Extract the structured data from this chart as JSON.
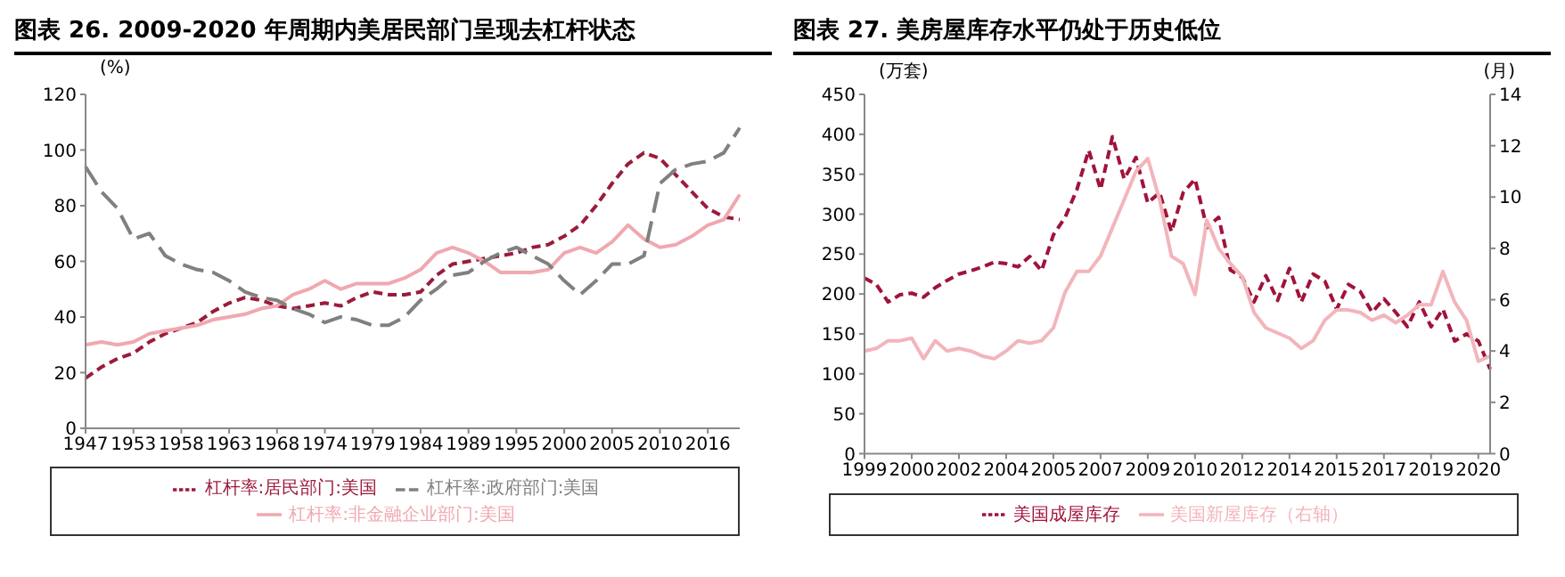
{
  "chart_data": [
    {
      "type": "line",
      "title": "图表 26. 2009-2020 年周期内美居民部门呈现去杠杆状态",
      "ylabel": "(%)",
      "categories": [
        "1947",
        null,
        null,
        "1953",
        null,
        null,
        "1958",
        null,
        null,
        "1963",
        null,
        null,
        "1968",
        null,
        null,
        "1974",
        null,
        null,
        "1979",
        null,
        null,
        "1984",
        null,
        null,
        "1989",
        null,
        null,
        "1995",
        null,
        null,
        "2000",
        null,
        null,
        "2005",
        null,
        null,
        "2010",
        null,
        null,
        "2016",
        null,
        null
      ],
      "ylim": [
        0,
        120
      ],
      "yticks": [
        0,
        20,
        40,
        60,
        80,
        100,
        120
      ],
      "legend": "bottom",
      "marker": "none",
      "series": [
        {
          "name": "杠杆率:居民部门:美国",
          "color": "#9b1b3b",
          "line_style": "dashed",
          "values": [
            18,
            22,
            25,
            27,
            31,
            34,
            36,
            38,
            42,
            45,
            47,
            46,
            44,
            43,
            44,
            45,
            44,
            47,
            49,
            48,
            48,
            49,
            55,
            59,
            60,
            61,
            62,
            63,
            65,
            66,
            69,
            73,
            80,
            88,
            95,
            99,
            97,
            91,
            85,
            79,
            76,
            75
          ]
        },
        {
          "name": "杠杆率:非金融企业部门:美国",
          "color": "#f0a8b0",
          "line_style": "solid",
          "values": [
            30,
            31,
            30,
            31,
            34,
            35,
            36,
            37,
            39,
            40,
            41,
            43,
            44,
            48,
            50,
            53,
            50,
            52,
            52,
            52,
            54,
            57,
            63,
            65,
            63,
            60,
            56,
            56,
            56,
            57,
            63,
            65,
            63,
            67,
            73,
            68,
            65,
            66,
            69,
            73,
            75,
            84
          ]
        },
        {
          "name": "杠杆率:政府部门:美国",
          "color": "#808080",
          "line_style": "longdash",
          "values": [
            94,
            85,
            79,
            68,
            70,
            62,
            59,
            57,
            56,
            53,
            49,
            47,
            46,
            43,
            41,
            38,
            40,
            39,
            37,
            37,
            40,
            46,
            50,
            55,
            56,
            60,
            63,
            65,
            62,
            59,
            53,
            48,
            53,
            59,
            59,
            62,
            88,
            93,
            95,
            96,
            99,
            108
          ]
        }
      ]
    },
    {
      "type": "line",
      "title": "图表 27. 美房屋库存水平仍处于历史低位",
      "ylabel": "(万套)",
      "y2label": "(月)",
      "categories": [
        "1999",
        null,
        null,
        null,
        "2000",
        null,
        null,
        null,
        "2002",
        null,
        null,
        null,
        "2004",
        null,
        null,
        null,
        "2005",
        null,
        null,
        null,
        "2007",
        null,
        null,
        null,
        "2009",
        null,
        null,
        null,
        "2010",
        null,
        null,
        null,
        "2012",
        null,
        null,
        null,
        "2014",
        null,
        null,
        null,
        "2015",
        null,
        null,
        null,
        "2017",
        null,
        null,
        null,
        "2019",
        null,
        null,
        null,
        "2020",
        null
      ],
      "ylim": [
        0,
        450
      ],
      "yticks": [
        0,
        50,
        100,
        150,
        200,
        250,
        300,
        350,
        400,
        450
      ],
      "y2lim": [
        0,
        14
      ],
      "y2ticks": [
        0,
        2,
        4,
        6,
        8,
        10,
        12,
        14
      ],
      "legend": "bottom",
      "marker": "none",
      "series": [
        {
          "name": "美国成屋库存",
          "color": "#a0133a",
          "line_style": "dashed",
          "values": [
            220,
            212,
            190,
            199,
            201,
            196,
            208,
            217,
            225,
            229,
            234,
            240,
            238,
            234,
            247,
            229,
            274,
            296,
            331,
            380,
            331,
            397,
            344,
            371,
            314,
            327,
            278,
            327,
            344,
            283,
            296,
            230,
            221,
            190,
            223,
            192,
            232,
            190,
            225,
            216,
            181,
            212,
            203,
            177,
            194,
            177,
            159,
            190,
            159,
            181,
            141,
            150,
            141,
            106
          ]
        },
        {
          "name": "美国新屋库存（右轴）",
          "color": "#f2b5bb",
          "line_style": "solid",
          "axis": "y2",
          "values": [
            4.0,
            4.1,
            4.4,
            4.4,
            4.5,
            3.7,
            4.4,
            4.0,
            4.1,
            4.0,
            3.8,
            3.7,
            4.0,
            4.4,
            4.3,
            4.4,
            4.9,
            6.3,
            7.1,
            7.1,
            7.7,
            8.8,
            9.9,
            11.0,
            11.5,
            9.9,
            7.7,
            7.4,
            6.2,
            9.1,
            8.0,
            7.4,
            6.9,
            5.5,
            4.9,
            4.7,
            4.5,
            4.1,
            4.4,
            5.2,
            5.6,
            5.6,
            5.5,
            5.2,
            5.4,
            5.1,
            5.4,
            5.8,
            5.8,
            7.1,
            5.9,
            5.2,
            3.6,
            3.8
          ]
        }
      ]
    }
  ]
}
